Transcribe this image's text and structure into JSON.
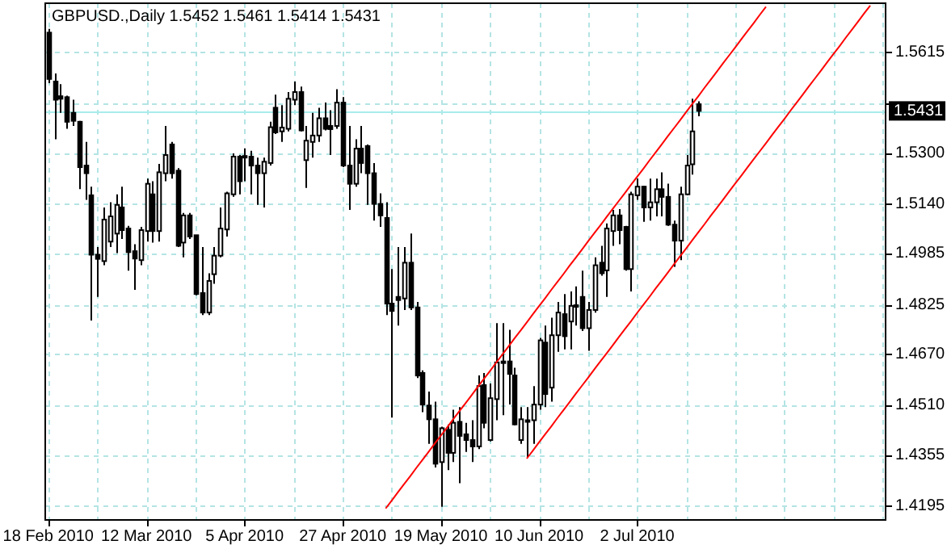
{
  "chart_data": {
    "type": "candlestick",
    "title": "GBPUSD.,Daily 1.5452 1.5461 1.5414 1.5431",
    "categories": [
      "18 Feb 2010",
      null,
      null,
      null,
      null,
      null,
      null,
      null,
      null,
      null,
      null,
      null,
      null,
      null,
      null,
      null,
      "12 Mar 2010",
      null,
      null,
      null,
      null,
      null,
      null,
      null,
      null,
      null,
      null,
      null,
      null,
      null,
      null,
      null,
      "5 Apr 2010",
      null,
      null,
      null,
      null,
      null,
      null,
      null,
      null,
      null,
      null,
      null,
      null,
      null,
      null,
      null,
      "27 Apr 2010",
      null,
      null,
      null,
      null,
      null,
      null,
      null,
      null,
      null,
      null,
      null,
      null,
      null,
      null,
      null,
      "19 May 2010",
      null,
      null,
      null,
      null,
      null,
      null,
      null,
      null,
      null,
      null,
      null,
      null,
      null,
      null,
      null,
      "10 Jun 2010",
      null,
      null,
      null,
      null,
      null,
      null,
      null,
      null,
      null,
      null,
      null,
      null,
      null,
      null,
      null,
      "2 Jul 2010",
      null,
      null,
      null,
      null,
      null,
      null,
      null,
      null,
      null,
      null,
      null,
      null,
      null,
      null,
      null,
      null,
      null,
      null,
      null,
      null,
      null,
      null,
      null,
      null,
      null,
      null,
      null,
      null,
      null,
      null,
      null,
      null,
      null,
      null,
      null,
      null,
      null,
      null,
      null,
      null
    ],
    "ohlc": [
      [
        1.5676,
        1.5688,
        1.5518,
        1.5531
      ],
      [
        1.5523,
        1.5548,
        1.5342,
        1.5466
      ],
      [
        1.5477,
        1.5515,
        1.5425,
        1.5469
      ],
      [
        1.5474,
        1.5479,
        1.5375,
        1.5397
      ],
      [
        1.5425,
        1.5466,
        1.5384,
        1.54
      ],
      [
        1.5397,
        1.54,
        1.5186,
        1.5255
      ],
      [
        1.526,
        1.5334,
        1.5153,
        1.5236
      ],
      [
        1.5167,
        1.5194,
        1.4775,
        1.4981
      ],
      [
        1.4981,
        1.5005,
        1.4849,
        1.4968
      ],
      [
        1.4961,
        1.5129,
        1.4948,
        1.5091
      ],
      [
        1.5022,
        1.5145,
        1.5005,
        1.5101
      ],
      [
        1.5047,
        1.517,
        1.4986,
        1.5137
      ],
      [
        1.5129,
        1.5194,
        1.503,
        1.5058
      ],
      [
        1.5063,
        1.5071,
        1.4931,
        1.4989
      ],
      [
        1.4992,
        1.5014,
        1.4871,
        1.4969
      ],
      [
        1.4964,
        1.5068,
        1.4948,
        1.5058
      ],
      [
        1.5055,
        1.5219,
        1.5022,
        1.5203
      ],
      [
        1.517,
        1.5211,
        1.5019,
        1.5055
      ],
      [
        1.5055,
        1.5265,
        1.5022,
        1.5239
      ],
      [
        1.5236,
        1.5384,
        1.5211,
        1.5293
      ],
      [
        1.5326,
        1.5334,
        1.5219,
        1.5236
      ],
      [
        1.5244,
        1.5252,
        1.5005,
        1.5009
      ],
      [
        1.5019,
        1.5112,
        1.4973,
        1.5104
      ],
      [
        1.5104,
        1.5112,
        1.503,
        1.5038
      ],
      [
        1.5042,
        1.5043,
        1.4854,
        1.4858
      ],
      [
        1.4861,
        1.5005,
        1.4792,
        1.48
      ],
      [
        1.48,
        1.4923,
        1.4792,
        1.4899
      ],
      [
        1.492,
        1.5005,
        1.489,
        1.4978
      ],
      [
        1.4978,
        1.5129,
        1.4973,
        1.5063
      ],
      [
        1.506,
        1.5178,
        1.5038,
        1.5173
      ],
      [
        1.517,
        1.5298,
        1.5162,
        1.5288
      ],
      [
        1.5288,
        1.5293,
        1.517,
        1.5211
      ],
      [
        1.529,
        1.5314,
        1.5211,
        1.5285
      ],
      [
        1.5288,
        1.5306,
        1.517,
        1.526
      ],
      [
        1.526,
        1.5285,
        1.5137,
        1.5236
      ],
      [
        1.5236,
        1.5285,
        1.5129,
        1.5272
      ],
      [
        1.5268,
        1.5397,
        1.526,
        1.538
      ],
      [
        1.5441,
        1.5482,
        1.5359,
        1.5364
      ],
      [
        1.5367,
        1.5449,
        1.5334,
        1.5379
      ],
      [
        1.5375,
        1.549,
        1.5367,
        1.5469
      ],
      [
        1.5466,
        1.5523,
        1.5449,
        1.549
      ],
      [
        1.549,
        1.5507,
        1.5367,
        1.537
      ],
      [
        1.5277,
        1.5384,
        1.519,
        1.5338
      ],
      [
        1.5334,
        1.5425,
        1.5285,
        1.5354
      ],
      [
        1.5354,
        1.5441,
        1.5334,
        1.5408
      ],
      [
        1.5408,
        1.5457,
        1.537,
        1.5375
      ],
      [
        1.5384,
        1.5433,
        1.5293,
        1.5374
      ],
      [
        1.5384,
        1.5499,
        1.5375,
        1.5457
      ],
      [
        1.5457,
        1.5474,
        1.5255,
        1.526
      ],
      [
        1.526,
        1.5384,
        1.5121,
        1.5203
      ],
      [
        1.5203,
        1.5342,
        1.5194,
        1.5313
      ],
      [
        1.5313,
        1.5384,
        1.5236,
        1.5268
      ],
      [
        1.5321,
        1.5326,
        1.5137,
        1.5236
      ],
      [
        1.5236,
        1.5268,
        1.5088,
        1.514
      ],
      [
        1.514,
        1.5173,
        1.5068,
        1.5104
      ],
      [
        1.5096,
        1.5145,
        1.4792,
        1.4828
      ],
      [
        1.4828,
        1.4936,
        1.4471,
        1.4805
      ],
      [
        1.4849,
        1.5005,
        1.4759,
        1.4839
      ],
      [
        1.4844,
        1.5005,
        1.4808,
        1.4956
      ],
      [
        1.4956,
        1.5047,
        1.4808,
        1.4816
      ],
      [
        1.4816,
        1.4833,
        1.4595,
        1.4603
      ],
      [
        1.4611,
        1.4619,
        1.4488,
        1.4512
      ],
      [
        1.4509,
        1.4553,
        1.4389,
        1.4466
      ],
      [
        1.4466,
        1.4521,
        1.4315,
        1.4327
      ],
      [
        1.4332,
        1.4443,
        1.4192,
        1.4438
      ],
      [
        1.4433,
        1.445,
        1.4307,
        1.4361
      ],
      [
        1.4361,
        1.4496,
        1.4332,
        1.4455
      ],
      [
        1.4458,
        1.4504,
        1.4266,
        1.4414
      ],
      [
        1.4419,
        1.4455,
        1.4364,
        1.4401
      ],
      [
        1.4401,
        1.4463,
        1.4332,
        1.4381
      ],
      [
        1.4381,
        1.4603,
        1.4373,
        1.457
      ],
      [
        1.4573,
        1.4611,
        1.4438,
        1.4455
      ],
      [
        1.4401,
        1.4578,
        1.4397,
        1.4532
      ],
      [
        1.4529,
        1.4767,
        1.4463,
        1.4644
      ],
      [
        1.4644,
        1.4767,
        1.4479,
        1.4647
      ],
      [
        1.4647,
        1.4746,
        1.4512,
        1.4608
      ],
      [
        1.4603,
        1.4627,
        1.4447,
        1.445
      ],
      [
        1.4401,
        1.4504,
        1.4389,
        1.4466
      ],
      [
        1.4463,
        1.4504,
        1.4348,
        1.4458
      ],
      [
        1.4463,
        1.457,
        1.4389,
        1.4512
      ],
      [
        1.4512,
        1.4721,
        1.4496,
        1.4713
      ],
      [
        1.4706,
        1.4759,
        1.4504,
        1.4545
      ],
      [
        1.4565,
        1.4784,
        1.4521,
        1.4729
      ],
      [
        1.4729,
        1.4833,
        1.4677,
        1.48
      ],
      [
        1.4795,
        1.4858,
        1.4685,
        1.4726
      ],
      [
        1.4772,
        1.4866,
        1.4685,
        1.4821
      ],
      [
        1.4823,
        1.4882,
        1.4759,
        1.482
      ],
      [
        1.4849,
        1.4931,
        1.4742,
        1.4751
      ],
      [
        1.4751,
        1.4833,
        1.468,
        1.4808
      ],
      [
        1.4808,
        1.4973,
        1.48,
        1.4948
      ],
      [
        1.4956,
        1.5009,
        1.4915,
        1.4923
      ],
      [
        1.4932,
        1.5079,
        1.4849,
        1.5063
      ],
      [
        1.5055,
        1.5121,
        1.5009,
        1.5104
      ],
      [
        1.5104,
        1.5124,
        1.5014,
        1.5058
      ],
      [
        1.5068,
        1.5071,
        1.4931,
        1.4936
      ],
      [
        1.4936,
        1.5178,
        1.4866,
        1.517
      ],
      [
        1.5167,
        1.5219,
        1.5153,
        1.5194
      ],
      [
        1.5194,
        1.5196,
        1.5084,
        1.5129
      ],
      [
        1.5129,
        1.5219,
        1.5088,
        1.5145
      ],
      [
        1.5145,
        1.5219,
        1.5101,
        1.5186
      ],
      [
        1.5186,
        1.5239,
        1.5101,
        1.5162
      ],
      [
        1.5162,
        1.5203,
        1.5071,
        1.5075
      ],
      [
        1.5075,
        1.5088,
        1.4943,
        1.5025
      ],
      [
        1.5025,
        1.5194,
        1.4964,
        1.517
      ],
      [
        1.517,
        1.5293,
        1.5167,
        1.526
      ],
      [
        1.5264,
        1.5469,
        1.5232,
        1.5367
      ],
      [
        1.5452,
        1.5461,
        1.5414,
        1.5431
      ],
      null,
      null,
      null,
      null,
      null,
      null,
      null,
      null,
      null,
      null,
      null,
      null,
      null,
      null,
      null,
      null,
      null,
      null,
      null,
      null,
      null,
      null,
      null,
      null,
      null,
      null,
      null,
      null,
      null,
      null
    ],
    "series": [
      {
        "type": "line",
        "color": "#ff0000",
        "values": [
          null,
          null,
          null,
          null,
          null,
          null,
          null,
          null,
          null,
          null,
          null,
          null,
          null,
          null,
          null,
          null,
          null,
          null,
          null,
          null,
          null,
          null,
          null,
          null,
          null,
          null,
          null,
          null,
          null,
          null,
          null,
          null,
          null,
          null,
          null,
          null,
          null,
          null,
          null,
          null,
          null,
          null,
          null,
          null,
          null,
          null,
          null,
          null,
          null,
          null,
          null,
          null,
          null,
          null,
          null,
          1.4187,
          1.4212,
          1.4238,
          1.4263,
          1.4288,
          1.4314,
          1.4339,
          1.4364,
          1.439,
          1.4415,
          1.444,
          1.4466,
          1.4491,
          1.4516,
          1.4541,
          1.4567,
          1.4592,
          1.4617,
          1.4643,
          1.4668,
          1.4693,
          1.4719,
          1.4744,
          1.4769,
          1.4795,
          1.482,
          1.4845,
          1.4871,
          1.4896,
          1.4921,
          1.4947,
          1.4972,
          1.4997,
          1.5023,
          1.5048,
          1.5073,
          1.5099,
          1.5124,
          1.5149,
          1.5174,
          1.52,
          1.5225,
          1.525,
          1.5276,
          1.5301,
          1.5326,
          1.5352,
          1.5377,
          1.5402,
          1.5428,
          1.5453,
          1.5478,
          1.5504,
          1.5529,
          1.5554,
          1.558,
          1.5605,
          1.563,
          1.5656,
          1.5681,
          1.5706,
          1.5732,
          1.5757,
          null,
          null,
          null,
          null,
          null,
          null,
          null,
          null,
          null,
          null,
          null,
          null,
          null,
          null,
          null,
          null,
          null,
          null,
          null
        ]
      },
      {
        "type": "line",
        "color": "#ff0000",
        "values": [
          null,
          null,
          null,
          null,
          null,
          null,
          null,
          null,
          null,
          null,
          null,
          null,
          null,
          null,
          null,
          null,
          null,
          null,
          null,
          null,
          null,
          null,
          null,
          null,
          null,
          null,
          null,
          null,
          null,
          null,
          null,
          null,
          null,
          null,
          null,
          null,
          null,
          null,
          null,
          null,
          null,
          null,
          null,
          null,
          null,
          null,
          null,
          null,
          null,
          null,
          null,
          null,
          null,
          null,
          null,
          null,
          null,
          null,
          null,
          null,
          null,
          null,
          null,
          null,
          null,
          null,
          null,
          null,
          null,
          null,
          null,
          null,
          null,
          null,
          null,
          null,
          null,
          null,
          1.4343,
          1.4368,
          1.4394,
          1.4419,
          1.4444,
          1.447,
          1.4495,
          1.452,
          1.4546,
          1.4571,
          1.4596,
          1.4622,
          1.4647,
          1.4672,
          1.4697,
          1.4723,
          1.4748,
          1.4773,
          1.4799,
          1.4824,
          1.4849,
          1.4875,
          1.49,
          1.4925,
          1.4951,
          1.4976,
          1.5001,
          1.5027,
          1.5052,
          1.5077,
          1.5103,
          1.5128,
          1.5153,
          1.5179,
          1.5204,
          1.5229,
          1.5255,
          1.528,
          1.5305,
          1.533,
          1.5356,
          1.5381,
          1.5406,
          1.5432,
          1.5457,
          1.5482,
          1.5508,
          1.5533,
          1.5558,
          1.5584,
          1.5609,
          1.5634,
          1.566,
          1.5685,
          1.571,
          1.5736,
          1.5761,
          null,
          null
        ]
      }
    ],
    "ref_lines": [
      {
        "axis": "y",
        "value": 1.5431,
        "label": "1.5431",
        "color": "#a8ecec"
      }
    ],
    "ylim": [
      1.4151,
      1.5768
    ],
    "yticks": [
      {
        "value": 1.4195,
        "label": "1.4195"
      },
      {
        "value": 1.4355,
        "label": "1.4355"
      },
      {
        "value": 1.451,
        "label": "1.4510"
      },
      {
        "value": 1.467,
        "label": "1.4670"
      },
      {
        "value": 1.4825,
        "label": "1.4825"
      },
      {
        "value": 1.4985,
        "label": "1.4985"
      },
      {
        "value": 1.514,
        "label": "1.5140"
      },
      {
        "value": 1.53,
        "label": "1.5300"
      },
      {
        "value": 1.5455,
        "label": null
      },
      {
        "value": 1.5615,
        "label": "1.5615"
      }
    ],
    "grid": true
  }
}
